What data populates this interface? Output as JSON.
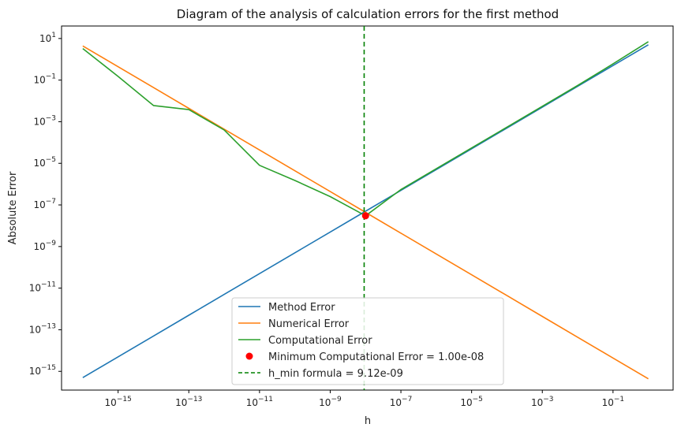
{
  "chart_data": {
    "type": "line",
    "title": "Diagram of the analysis of calculation errors for the first method",
    "xlabel": "h",
    "ylabel": "Absolute Error",
    "xscale": "log",
    "yscale": "log",
    "xlim_exp": [
      -16.6,
      0.7
    ],
    "ylim_exp": [
      -15.9,
      1.6
    ],
    "grid": false,
    "legend_position": "lower-center",
    "x_ticks": [
      {
        "exp": -15,
        "base": "10",
        "sup": "−15"
      },
      {
        "exp": -13,
        "base": "10",
        "sup": "−13"
      },
      {
        "exp": -11,
        "base": "10",
        "sup": "−11"
      },
      {
        "exp": -9,
        "base": "10",
        "sup": "−9"
      },
      {
        "exp": -7,
        "base": "10",
        "sup": "−7"
      },
      {
        "exp": -5,
        "base": "10",
        "sup": "−5"
      },
      {
        "exp": -3,
        "base": "10",
        "sup": "−3"
      },
      {
        "exp": -1,
        "base": "10",
        "sup": "−1"
      }
    ],
    "y_ticks": [
      {
        "exp": 1,
        "base": "10",
        "sup": "1"
      },
      {
        "exp": -1,
        "base": "10",
        "sup": "−1"
      },
      {
        "exp": -3,
        "base": "10",
        "sup": "−3"
      },
      {
        "exp": -5,
        "base": "10",
        "sup": "−5"
      },
      {
        "exp": -7,
        "base": "10",
        "sup": "−7"
      },
      {
        "exp": -9,
        "base": "10",
        "sup": "−9"
      },
      {
        "exp": -11,
        "base": "10",
        "sup": "−11"
      },
      {
        "exp": -13,
        "base": "10",
        "sup": "−13"
      },
      {
        "exp": -15,
        "base": "10",
        "sup": "−15"
      }
    ],
    "series": [
      {
        "name": "Method Error",
        "color": "#1f77b4",
        "x": [
          1e-16,
          1e-15,
          1e-14,
          1e-13,
          1e-12,
          1e-11,
          1e-10,
          1e-09,
          1e-08,
          1e-07,
          1e-06,
          1e-05,
          0.0001,
          0.001,
          0.01,
          0.1,
          1
        ],
        "y": [
          5e-16,
          5e-15,
          5e-14,
          5e-13,
          5e-12,
          5e-11,
          5e-10,
          5e-09,
          5e-08,
          5e-07,
          5e-06,
          5e-05,
          0.0005,
          0.005,
          0.05,
          0.5,
          5
        ]
      },
      {
        "name": "Numerical Error",
        "color": "#ff7f0e",
        "x": [
          1e-16,
          1e-15,
          1e-14,
          1e-13,
          1e-12,
          1e-11,
          1e-10,
          1e-09,
          1e-08,
          1e-07,
          1e-06,
          1e-05,
          0.0001,
          0.001,
          0.01,
          0.1,
          1
        ],
        "y": [
          4.4,
          0.44,
          0.044,
          0.0044,
          0.00044,
          4.4e-05,
          4.4e-06,
          4.4e-07,
          4.4e-08,
          4.4e-09,
          4.4e-10,
          4.4e-11,
          4.4e-12,
          4.4e-13,
          4.4e-14,
          4.4e-15,
          4.4e-16
        ]
      },
      {
        "name": "Computational Error",
        "color": "#2ca02c",
        "x": [
          1e-16,
          1e-15,
          1e-14,
          1e-13,
          1e-12,
          1e-11,
          1e-10,
          1e-09,
          1e-08,
          1e-07,
          1e-06,
          1e-05,
          0.0001,
          0.001,
          0.01,
          0.1,
          1
        ],
        "y": [
          3.3,
          0.15,
          0.006,
          0.0038,
          0.0004,
          8e-06,
          1.5e-06,
          2.5e-07,
          3e-08,
          5.5e-07,
          5.5e-06,
          5.5e-05,
          0.00055,
          0.0055,
          0.055,
          0.6,
          7.0
        ]
      }
    ],
    "marker": {
      "label": "Minimum Computational Error = 1.00e-08",
      "color": "#ff0000",
      "x": 1e-08,
      "y": 3e-08
    },
    "vline": {
      "label": "h_min formula = 9.12e-09",
      "color": "#008000",
      "x": 9.12e-09
    }
  }
}
